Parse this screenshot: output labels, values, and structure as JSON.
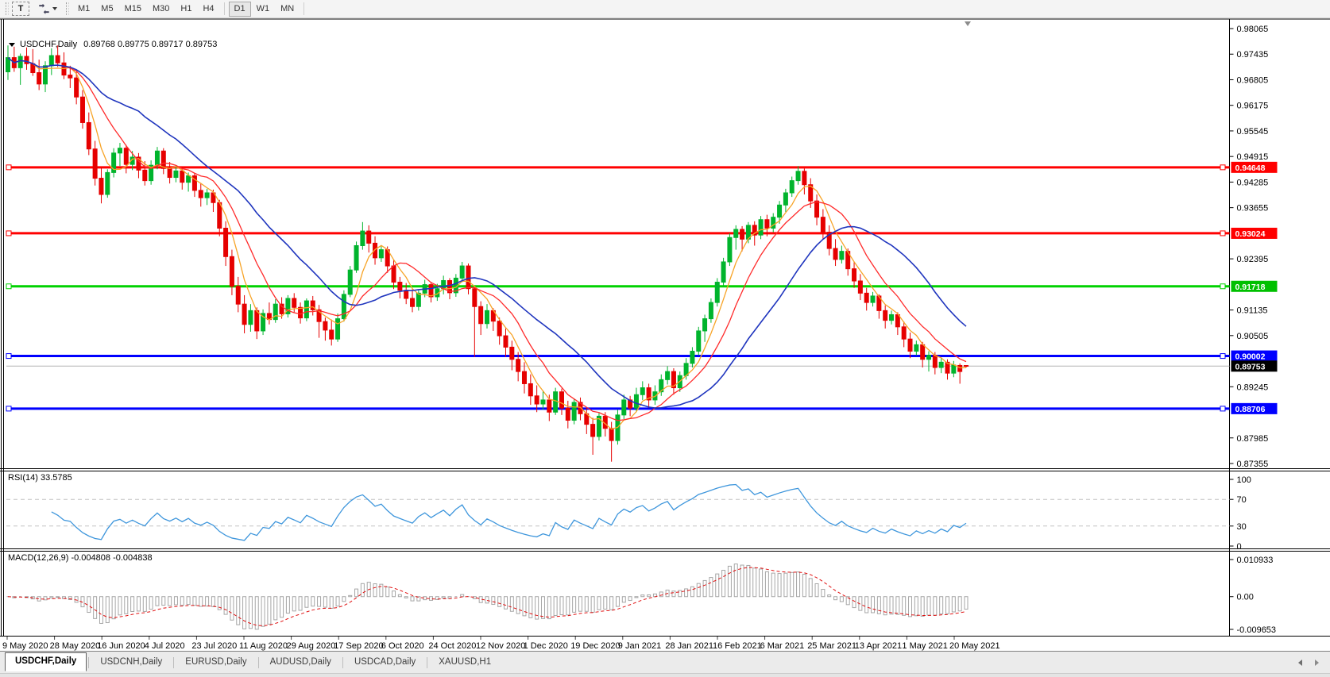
{
  "toolbar": {
    "text_tool": "T",
    "timeframes": [
      {
        "label": "M1",
        "active": false
      },
      {
        "label": "M5",
        "active": false
      },
      {
        "label": "M15",
        "active": false
      },
      {
        "label": "M30",
        "active": false
      },
      {
        "label": "H1",
        "active": false
      },
      {
        "label": "H4",
        "active": false
      },
      {
        "label": "D1",
        "active": true
      },
      {
        "label": "W1",
        "active": false
      },
      {
        "label": "MN",
        "active": false
      }
    ]
  },
  "chart_title": {
    "symbol": "USDCHF,Daily",
    "ohlc": "0.89768 0.89775 0.89717 0.89753"
  },
  "tabs": [
    {
      "label": "USDCHF,Daily",
      "active": true
    },
    {
      "label": "USDCNH,Daily",
      "active": false
    },
    {
      "label": "EURUSD,Daily",
      "active": false
    },
    {
      "label": "AUDUSD,Daily",
      "active": false
    },
    {
      "label": "USDCAD,Daily",
      "active": false
    },
    {
      "label": "XAUUSD,H1",
      "active": false
    }
  ],
  "chart_data": {
    "type": "candlestick",
    "symbol": "USDCHF",
    "timeframe": "Daily",
    "ohlc_display": {
      "open": "0.89768",
      "high": "0.89775",
      "low": "0.89717",
      "close": "0.89753"
    },
    "y_axis": {
      "min": 0.87355,
      "max": 0.98065,
      "tick_step": 0.0063,
      "visible_ticks": [
        0.98065,
        0.97435,
        0.96805,
        0.96175,
        0.95545,
        0.94915,
        0.94285,
        0.93655,
        0.92395,
        0.91135,
        0.90505,
        0.89245,
        0.87985,
        0.87355
      ]
    },
    "x_labels": [
      "9 May 2020",
      "28 May 2020",
      "16 Jun 2020",
      "4 Jul 2020",
      "23 Jul 2020",
      "11 Aug 2020",
      "29 Aug 2020",
      "17 Sep 2020",
      "6 Oct 2020",
      "24 Oct 2020",
      "12 Nov 2020",
      "1 Dec 2020",
      "19 Dec 2020",
      "9 Jan 2021",
      "28 Jan 2021",
      "16 Feb 2021",
      "6 Mar 2021",
      "25 Mar 2021",
      "13 Apr 2021",
      "1 May 2021",
      "20 May 2021"
    ],
    "horizontal_lines": [
      {
        "price": 0.94648,
        "color": "#FF0000",
        "width": 3
      },
      {
        "price": 0.93024,
        "color": "#FF0000",
        "width": 3
      },
      {
        "price": 0.91718,
        "color": "#00D200",
        "width": 3
      },
      {
        "price": 0.90002,
        "color": "#0000FF",
        "width": 3
      },
      {
        "price": 0.88706,
        "color": "#0000FF",
        "width": 3
      }
    ],
    "current_price": 0.89753,
    "colors": {
      "bull": "#00B42D",
      "bear": "#E60000",
      "ma_fast": "#F7A428",
      "ma_mid": "#FF2B2B",
      "ma_slow": "#1F35BE",
      "rsi": "#3E96DC",
      "macd_hist": "#A6A6A6",
      "macd_signal": "#E01010",
      "current_line": "#B4B4B4"
    },
    "moving_averages": [
      {
        "period": 5,
        "color_key": "ma_fast"
      },
      {
        "period": 10,
        "color_key": "ma_mid"
      },
      {
        "period": 22,
        "color_key": "ma_slow"
      }
    ],
    "candles": [
      [
        0.97,
        0.9765,
        0.968,
        0.9735
      ],
      [
        0.9735,
        0.9762,
        0.97,
        0.971
      ],
      [
        0.971,
        0.9745,
        0.9668,
        0.9738
      ],
      [
        0.9738,
        0.976,
        0.9705,
        0.972
      ],
      [
        0.972,
        0.9756,
        0.969,
        0.9698
      ],
      [
        0.9698,
        0.973,
        0.9655,
        0.967
      ],
      [
        0.967,
        0.9726,
        0.965,
        0.9715
      ],
      [
        0.9715,
        0.9758,
        0.9692,
        0.974
      ],
      [
        0.974,
        0.9765,
        0.9712,
        0.9722
      ],
      [
        0.9722,
        0.9748,
        0.9682,
        0.9692
      ],
      [
        0.9692,
        0.9715,
        0.966,
        0.9685
      ],
      [
        0.9685,
        0.97,
        0.962,
        0.9638
      ],
      [
        0.9638,
        0.9655,
        0.956,
        0.9575
      ],
      [
        0.9575,
        0.96,
        0.9495,
        0.951
      ],
      [
        0.951,
        0.953,
        0.942,
        0.9438
      ],
      [
        0.9438,
        0.9465,
        0.9376,
        0.9398
      ],
      [
        0.9398,
        0.946,
        0.939,
        0.9452
      ],
      [
        0.9452,
        0.9512,
        0.944,
        0.95
      ],
      [
        0.95,
        0.9525,
        0.9468,
        0.9512
      ],
      [
        0.9512,
        0.952,
        0.945,
        0.9472
      ],
      [
        0.9472,
        0.9505,
        0.9458,
        0.949
      ],
      [
        0.949,
        0.95,
        0.9438,
        0.9458
      ],
      [
        0.9458,
        0.948,
        0.942,
        0.9432
      ],
      [
        0.9432,
        0.9482,
        0.9422,
        0.947
      ],
      [
        0.947,
        0.9515,
        0.946,
        0.9505
      ],
      [
        0.9505,
        0.9512,
        0.9448,
        0.9462
      ],
      [
        0.9462,
        0.9478,
        0.9425,
        0.944
      ],
      [
        0.944,
        0.947,
        0.9428,
        0.9456
      ],
      [
        0.9456,
        0.9465,
        0.941,
        0.9428
      ],
      [
        0.9428,
        0.9452,
        0.9405,
        0.9444
      ],
      [
        0.9444,
        0.945,
        0.9392,
        0.9408
      ],
      [
        0.9408,
        0.9425,
        0.9368,
        0.939
      ],
      [
        0.939,
        0.9412,
        0.9372,
        0.9402
      ],
      [
        0.9402,
        0.941,
        0.9355,
        0.9378
      ],
      [
        0.9378,
        0.9385,
        0.9295,
        0.9315
      ],
      [
        0.9315,
        0.9332,
        0.9222,
        0.9245
      ],
      [
        0.9245,
        0.9262,
        0.915,
        0.9172
      ],
      [
        0.9172,
        0.9195,
        0.9108,
        0.9128
      ],
      [
        0.9128,
        0.915,
        0.9056,
        0.9078
      ],
      [
        0.9078,
        0.9128,
        0.906,
        0.9112
      ],
      [
        0.9112,
        0.912,
        0.9042,
        0.9062
      ],
      [
        0.9062,
        0.9115,
        0.9052,
        0.9105
      ],
      [
        0.9105,
        0.9132,
        0.9078,
        0.909
      ],
      [
        0.909,
        0.914,
        0.9082,
        0.9128
      ],
      [
        0.9128,
        0.9145,
        0.9092,
        0.9104
      ],
      [
        0.9104,
        0.915,
        0.9095,
        0.9142
      ],
      [
        0.9142,
        0.9155,
        0.9108,
        0.912
      ],
      [
        0.912,
        0.9132,
        0.908,
        0.9094
      ],
      [
        0.9094,
        0.9142,
        0.9086,
        0.9136
      ],
      [
        0.9136,
        0.9148,
        0.91,
        0.9114
      ],
      [
        0.9114,
        0.9126,
        0.9045,
        0.9085
      ],
      [
        0.9085,
        0.9095,
        0.9038,
        0.9064
      ],
      [
        0.9064,
        0.909,
        0.9026,
        0.9042
      ],
      [
        0.9042,
        0.9105,
        0.9035,
        0.9092
      ],
      [
        0.9092,
        0.9162,
        0.9085,
        0.9152
      ],
      [
        0.9152,
        0.9222,
        0.9145,
        0.9212
      ],
      [
        0.9212,
        0.9282,
        0.9205,
        0.9272
      ],
      [
        0.9272,
        0.933,
        0.9262,
        0.9308
      ],
      [
        0.9308,
        0.9322,
        0.9255,
        0.9278
      ],
      [
        0.9278,
        0.9295,
        0.9225,
        0.9242
      ],
      [
        0.9242,
        0.9272,
        0.9232,
        0.9262
      ],
      [
        0.9262,
        0.927,
        0.9205,
        0.9222
      ],
      [
        0.9222,
        0.9238,
        0.9165,
        0.9182
      ],
      [
        0.9182,
        0.9195,
        0.9142,
        0.9162
      ],
      [
        0.9162,
        0.918,
        0.9128,
        0.9142
      ],
      [
        0.9142,
        0.9165,
        0.9108,
        0.9122
      ],
      [
        0.9122,
        0.9162,
        0.9112,
        0.9155
      ],
      [
        0.9155,
        0.9188,
        0.9145,
        0.9176
      ],
      [
        0.9176,
        0.9182,
        0.9132,
        0.9146
      ],
      [
        0.9146,
        0.9178,
        0.9136,
        0.9166
      ],
      [
        0.9166,
        0.9198,
        0.9152,
        0.9186
      ],
      [
        0.9186,
        0.9192,
        0.914,
        0.9156
      ],
      [
        0.9156,
        0.9202,
        0.9146,
        0.9192
      ],
      [
        0.9192,
        0.9232,
        0.9182,
        0.9222
      ],
      [
        0.9222,
        0.9228,
        0.9152,
        0.9166
      ],
      [
        0.9166,
        0.9172,
        0.8998,
        0.9122
      ],
      [
        0.9122,
        0.9135,
        0.9052,
        0.908
      ],
      [
        0.908,
        0.9128,
        0.9068,
        0.9112
      ],
      [
        0.9112,
        0.9118,
        0.9062,
        0.9086
      ],
      [
        0.9086,
        0.9095,
        0.9028,
        0.905
      ],
      [
        0.905,
        0.9068,
        0.8998,
        0.9022
      ],
      [
        0.9022,
        0.9038,
        0.8965,
        0.8992
      ],
      [
        0.8992,
        0.901,
        0.8938,
        0.8962
      ],
      [
        0.8962,
        0.8985,
        0.8908,
        0.8932
      ],
      [
        0.8932,
        0.8955,
        0.888,
        0.8902
      ],
      [
        0.8902,
        0.8928,
        0.8862,
        0.8882
      ],
      [
        0.8882,
        0.8915,
        0.8868,
        0.8892
      ],
      [
        0.8892,
        0.8905,
        0.884,
        0.8862
      ],
      [
        0.8862,
        0.8922,
        0.8855,
        0.8912
      ],
      [
        0.8912,
        0.892,
        0.8855,
        0.8872
      ],
      [
        0.8872,
        0.889,
        0.8822,
        0.8842
      ],
      [
        0.8842,
        0.8895,
        0.8832,
        0.8886
      ],
      [
        0.8886,
        0.8898,
        0.8842,
        0.8858
      ],
      [
        0.8858,
        0.8872,
        0.8808,
        0.8832
      ],
      [
        0.8832,
        0.8848,
        0.8757,
        0.8802
      ],
      [
        0.8802,
        0.886,
        0.8792,
        0.8852
      ],
      [
        0.8852,
        0.8862,
        0.8802,
        0.8822
      ],
      [
        0.8822,
        0.8838,
        0.874,
        0.8792
      ],
      [
        0.8792,
        0.8868,
        0.8782,
        0.8855
      ],
      [
        0.8855,
        0.8905,
        0.8845,
        0.8892
      ],
      [
        0.8892,
        0.8902,
        0.8852,
        0.8872
      ],
      [
        0.8872,
        0.8922,
        0.8862,
        0.8905
      ],
      [
        0.8905,
        0.8938,
        0.8892,
        0.8922
      ],
      [
        0.8922,
        0.8932,
        0.8872,
        0.8892
      ],
      [
        0.8892,
        0.8928,
        0.888,
        0.8912
      ],
      [
        0.8912,
        0.8955,
        0.8902,
        0.8942
      ],
      [
        0.8942,
        0.8975,
        0.893,
        0.8962
      ],
      [
        0.8962,
        0.897,
        0.8905,
        0.8922
      ],
      [
        0.8922,
        0.8962,
        0.8912,
        0.8952
      ],
      [
        0.8952,
        0.8995,
        0.8942,
        0.8982
      ],
      [
        0.8982,
        0.9022,
        0.8972,
        0.9012
      ],
      [
        0.9012,
        0.9072,
        0.9002,
        0.9062
      ],
      [
        0.9062,
        0.9102,
        0.9035,
        0.9092
      ],
      [
        0.9092,
        0.9142,
        0.9082,
        0.9132
      ],
      [
        0.9132,
        0.9192,
        0.9122,
        0.9182
      ],
      [
        0.9182,
        0.9242,
        0.9172,
        0.9232
      ],
      [
        0.9232,
        0.9302,
        0.9222,
        0.9292
      ],
      [
        0.9292,
        0.9322,
        0.9262,
        0.9312
      ],
      [
        0.9312,
        0.932,
        0.9258,
        0.9288
      ],
      [
        0.9288,
        0.933,
        0.9278,
        0.9322
      ],
      [
        0.9322,
        0.9332,
        0.9272,
        0.9298
      ],
      [
        0.9298,
        0.9345,
        0.9288,
        0.9336
      ],
      [
        0.9336,
        0.9348,
        0.9295,
        0.9315
      ],
      [
        0.9315,
        0.9352,
        0.9305,
        0.9342
      ],
      [
        0.9342,
        0.9382,
        0.9326,
        0.9372
      ],
      [
        0.9372,
        0.9412,
        0.9355,
        0.9402
      ],
      [
        0.9402,
        0.9442,
        0.9392,
        0.9432
      ],
      [
        0.9432,
        0.9468,
        0.9422,
        0.9455
      ],
      [
        0.9455,
        0.9462,
        0.9398,
        0.9422
      ],
      [
        0.9422,
        0.9438,
        0.9365,
        0.9382
      ],
      [
        0.9382,
        0.9398,
        0.9322,
        0.9342
      ],
      [
        0.9342,
        0.9362,
        0.9288,
        0.9305
      ],
      [
        0.9305,
        0.9322,
        0.9248,
        0.9265
      ],
      [
        0.9265,
        0.9288,
        0.9222,
        0.9238
      ],
      [
        0.9238,
        0.9272,
        0.9228,
        0.9258
      ],
      [
        0.9258,
        0.9265,
        0.9198,
        0.9215
      ],
      [
        0.9215,
        0.9232,
        0.9168,
        0.9185
      ],
      [
        0.9185,
        0.9202,
        0.9138,
        0.9155
      ],
      [
        0.9155,
        0.9168,
        0.9112,
        0.9132
      ],
      [
        0.9132,
        0.9158,
        0.9122,
        0.9148
      ],
      [
        0.9148,
        0.9152,
        0.9092,
        0.9112
      ],
      [
        0.9112,
        0.9125,
        0.9068,
        0.9088
      ],
      [
        0.9088,
        0.9112,
        0.9078,
        0.9102
      ],
      [
        0.9102,
        0.9108,
        0.9052,
        0.9072
      ],
      [
        0.9072,
        0.9085,
        0.9022,
        0.9042
      ],
      [
        0.9042,
        0.9058,
        0.8995,
        0.9012
      ],
      [
        0.9012,
        0.9038,
        0.9002,
        0.9028
      ],
      [
        0.9028,
        0.9035,
        0.8972,
        0.8992
      ],
      [
        0.8992,
        0.9012,
        0.8962,
        0.9002
      ],
      [
        0.9002,
        0.901,
        0.8955,
        0.8972
      ],
      [
        0.8972,
        0.8995,
        0.8958,
        0.8985
      ],
      [
        0.8985,
        0.8992,
        0.8942,
        0.8958
      ],
      [
        0.8958,
        0.8988,
        0.8948,
        0.8978
      ],
      [
        0.8977,
        0.8982,
        0.8932,
        0.8962
      ],
      [
        0.89768,
        0.89775,
        0.89717,
        0.89753
      ]
    ],
    "rsi": {
      "label": "RSI(14) 33.5785",
      "display_period": 14,
      "calc_period": 7,
      "value": 33.5785,
      "levels": [
        100,
        70,
        30,
        0
      ],
      "dashed_levels": [
        70,
        30
      ]
    },
    "macd": {
      "label": "MACD(12,26,9) -0.004808 -0.004838",
      "fast": 6,
      "slow": 13,
      "signal": 5,
      "axis_max": 0.010933,
      "axis_min": -0.009653,
      "axis_labels": [
        "0.010933",
        "0.00",
        "-0.009653"
      ],
      "main_value": -0.004808,
      "signal_value": -0.004838
    }
  }
}
